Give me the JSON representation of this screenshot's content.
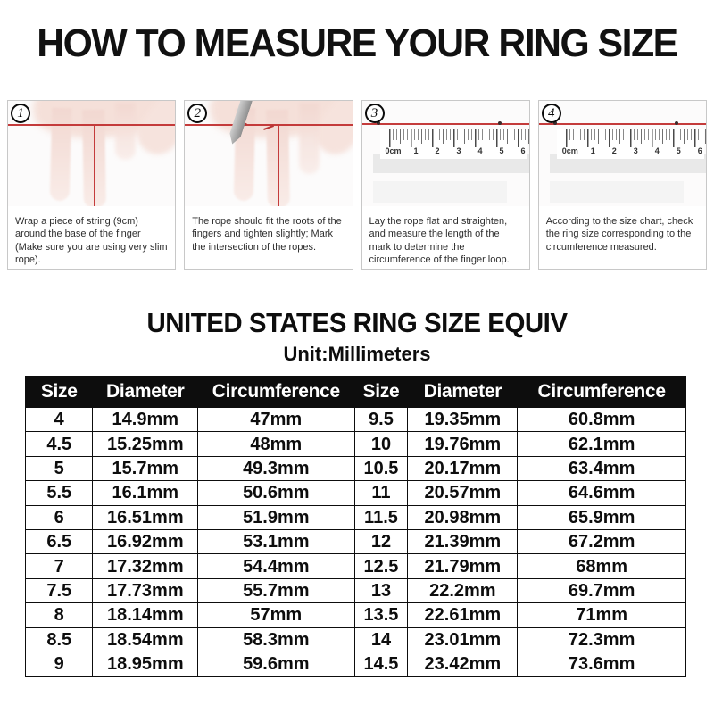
{
  "page_title": "HOW TO MEASURE YOUR RING SIZE",
  "steps": [
    {
      "number": "1",
      "caption": "Wrap a piece of string (9cm) around the base of the finger (Make sure you are using very slim rope)."
    },
    {
      "number": "2",
      "caption": "The rope should fit the roots of the fingers and tighten slightly; Mark the intersection of the ropes."
    },
    {
      "number": "3",
      "caption": "Lay the rope flat and straighten, and measure the length of the mark to determine the circumference of the finger loop."
    },
    {
      "number": "4",
      "caption": "According to the size chart, check the ring size corresponding to the circumference measured."
    }
  ],
  "ruler": {
    "labels": [
      "0cm",
      "1",
      "2",
      "3",
      "4",
      "5",
      "6"
    ]
  },
  "size_chart": {
    "title": "UNITED STATES RING SIZE EQUIV",
    "subtitle": "Unit:Millimeters",
    "headers": [
      "Size",
      "Diameter",
      "Circumference",
      "Size",
      "Diameter",
      "Circumference"
    ],
    "rows": [
      [
        "4",
        "14.9mm",
        "47mm",
        "9.5",
        "19.35mm",
        "60.8mm"
      ],
      [
        "4.5",
        "15.25mm",
        "48mm",
        "10",
        "19.76mm",
        "62.1mm"
      ],
      [
        "5",
        "15.7mm",
        "49.3mm",
        "10.5",
        "20.17mm",
        "63.4mm"
      ],
      [
        "5.5",
        "16.1mm",
        "50.6mm",
        "11",
        "20.57mm",
        "64.6mm"
      ],
      [
        "6",
        "16.51mm",
        "51.9mm",
        "11.5",
        "20.98mm",
        "65.9mm"
      ],
      [
        "6.5",
        "16.92mm",
        "53.1mm",
        "12",
        "21.39mm",
        "67.2mm"
      ],
      [
        "7",
        "17.32mm",
        "54.4mm",
        "12.5",
        "21.79mm",
        "68mm"
      ],
      [
        "7.5",
        "17.73mm",
        "55.7mm",
        "13",
        "22.2mm",
        "69.7mm"
      ],
      [
        "8",
        "18.14mm",
        "57mm",
        "13.5",
        "22.61mm",
        "71mm"
      ],
      [
        "8.5",
        "18.54mm",
        "58.3mm",
        "14",
        "23.01mm",
        "72.3mm"
      ],
      [
        "9",
        "18.95mm",
        "59.6mm",
        "14.5",
        "23.42mm",
        "73.6mm"
      ]
    ]
  },
  "colors": {
    "string_red": "#c43b3b",
    "header_bg": "#0d0d0d",
    "header_text": "#ffffff",
    "panel_border": "#c8c8c8",
    "skin_tone": "#f5e0d9",
    "ruler_shadow": "#e9e9e9"
  }
}
